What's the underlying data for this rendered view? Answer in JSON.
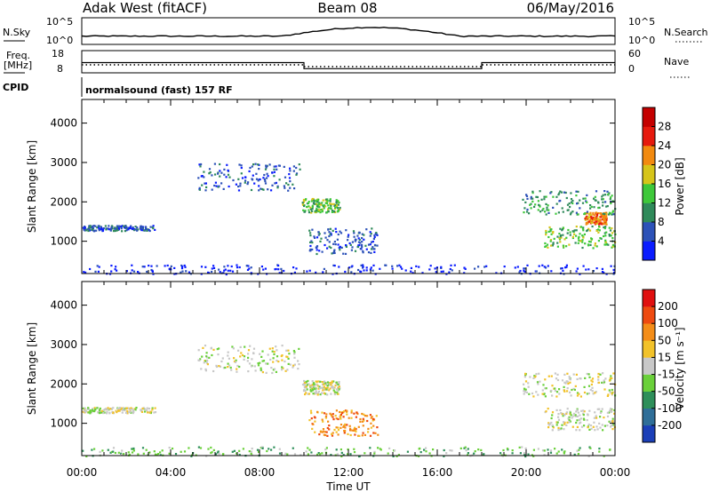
{
  "header": {
    "title": "Adak West (fitACF)",
    "beam": "Beam 08",
    "date": "06/May/2016"
  },
  "nsky_panel": {
    "left_label": "N.Sky",
    "left_ticks": [
      "10^5",
      "10^0"
    ],
    "right_label": "N.Search",
    "right_ticks": [
      "10^5",
      "10^0"
    ]
  },
  "freq_panel": {
    "left_label": "Freq.",
    "left_unit": "[MHz]",
    "left_ticks": [
      "18",
      "8"
    ],
    "right_label": "Nave",
    "right_ticks": [
      "60",
      "0"
    ],
    "freq_steps": [
      {
        "from": 0,
        "to": 10.0,
        "mhz": 12.6
      },
      {
        "from": 10.0,
        "to": 18.0,
        "mhz": 9.9
      },
      {
        "from": 18.0,
        "to": 24.0,
        "mhz": 12.6
      }
    ]
  },
  "cpid": {
    "label": "CPID",
    "text": "normalsound (fast) 157 RF"
  },
  "time_axis": {
    "title": "Time UT",
    "ticks": [
      "00:00",
      "04:00",
      "08:00",
      "12:00",
      "16:00",
      "20:00",
      "00:00"
    ]
  },
  "chart_data": [
    {
      "type": "heatmap",
      "title": "",
      "ylabel": "Slant Range [km]",
      "xlabel": "Time UT",
      "xlim": [
        0,
        24
      ],
      "ylim": [
        180,
        4600
      ],
      "yticks": [
        "1000",
        "2000",
        "3000",
        "4000"
      ],
      "colorbar": {
        "label": "Power [dB]",
        "ticks": [
          "4",
          "8",
          "12",
          "16",
          "20",
          "24",
          "28"
        ],
        "colors": [
          "#0a1cff",
          "#2d52b8",
          "#2f8a5a",
          "#3ec83a",
          "#d6c51a",
          "#f28a10",
          "#e61a0e",
          "#c40000"
        ]
      },
      "echo_regions": [
        {
          "t0": 0.0,
          "t1": 3.3,
          "r0": 1280,
          "r1": 1420,
          "level": 1
        },
        {
          "t0": 5.2,
          "t1": 9.8,
          "r0": 2300,
          "r1": 3000,
          "level": 1
        },
        {
          "t0": 9.9,
          "t1": 11.6,
          "r0": 1750,
          "r1": 2100,
          "level": 3
        },
        {
          "t0": 10.2,
          "t1": 13.3,
          "r0": 700,
          "r1": 1350,
          "level": 1
        },
        {
          "t0": 20.8,
          "t1": 24.0,
          "r0": 850,
          "r1": 1400,
          "level": 3
        },
        {
          "t0": 22.6,
          "t1": 23.6,
          "r0": 1450,
          "r1": 1750,
          "level": 5
        },
        {
          "t0": 19.8,
          "t1": 24.0,
          "r0": 1700,
          "r1": 2300,
          "level": 2
        },
        {
          "t0": 0.0,
          "t1": 24.0,
          "r0": 180,
          "r1": 420,
          "level": 0
        }
      ]
    },
    {
      "type": "heatmap",
      "title": "",
      "ylabel": "Slant Range [km]",
      "xlabel": "Time UT",
      "xlim": [
        0,
        24
      ],
      "ylim": [
        180,
        4600
      ],
      "yticks": [
        "1000",
        "2000",
        "3000",
        "4000"
      ],
      "colorbar": {
        "label": "Velocity [m s⁻¹]",
        "ticks": [
          "200",
          "100",
          "50",
          "15",
          "-15",
          "-50",
          "-100",
          "-200"
        ],
        "colors": [
          "#1b3fb8",
          "#2f6e98",
          "#2e8f5a",
          "#6ad03a",
          "#c8c8c8",
          "#f2c22a",
          "#f48d18",
          "#ee4a10",
          "#e01010"
        ]
      },
      "echo_regions": [
        {
          "t0": 0.0,
          "t1": 3.3,
          "r0": 1280,
          "r1": 1420,
          "level": 4
        },
        {
          "t0": 5.2,
          "t1": 9.8,
          "r0": 2300,
          "r1": 3000,
          "level": 4
        },
        {
          "t0": 9.9,
          "t1": 11.6,
          "r0": 1750,
          "r1": 2100,
          "level": 4
        },
        {
          "t0": 10.2,
          "t1": 13.3,
          "r0": 700,
          "r1": 1350,
          "level": 6
        },
        {
          "t0": 20.8,
          "t1": 24.0,
          "r0": 850,
          "r1": 1400,
          "level": 4
        },
        {
          "t0": 19.8,
          "t1": 24.0,
          "r0": 1700,
          "r1": 2300,
          "level": 4
        },
        {
          "t0": 0.0,
          "t1": 24.0,
          "r0": 180,
          "r1": 420,
          "level": 3
        }
      ]
    }
  ]
}
